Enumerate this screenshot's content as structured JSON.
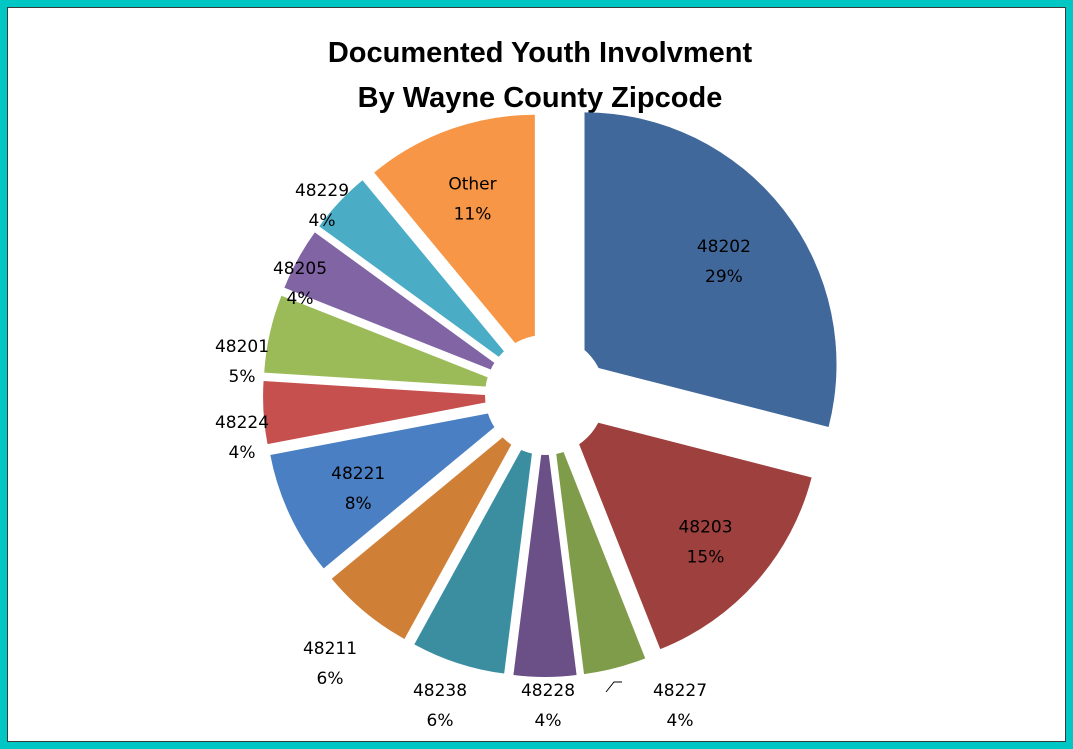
{
  "chart_data": {
    "type": "pie",
    "title_lines": [
      "Documented Youth Involvment",
      "By Wayne County Zipcode"
    ],
    "unit": "%",
    "slices": [
      {
        "label": "48202",
        "value": 29,
        "pct_text": "29%",
        "color": "#41689b"
      },
      {
        "label": "48203",
        "value": 15,
        "pct_text": "15%",
        "color": "#9e403d"
      },
      {
        "label": "48227",
        "value": 4,
        "pct_text": "4%",
        "color": "#7f9c4b"
      },
      {
        "label": "48228",
        "value": 4,
        "pct_text": "4%",
        "color": "#6b5088"
      },
      {
        "label": "48238",
        "value": 6,
        "pct_text": "6%",
        "color": "#3a8ea0"
      },
      {
        "label": "48211",
        "value": 6,
        "pct_text": "6%",
        "color": "#d07f36"
      },
      {
        "label": "48221",
        "value": 8,
        "pct_text": "8%",
        "color": "#4a7fc3"
      },
      {
        "label": "48224",
        "value": 4,
        "pct_text": "4%",
        "color": "#c6504e"
      },
      {
        "label": "48201",
        "value": 5,
        "pct_text": "5%",
        "color": "#9bbb59"
      },
      {
        "label": "48205",
        "value": 4,
        "pct_text": "4%",
        "color": "#8064a3"
      },
      {
        "label": "48229",
        "value": 4,
        "pct_text": "4%",
        "color": "#4bacc6"
      },
      {
        "label": "Other",
        "value": 11,
        "pct_text": "11%",
        "color": "#f79646"
      }
    ]
  },
  "frame": {
    "border_color": "#00c6c4"
  }
}
